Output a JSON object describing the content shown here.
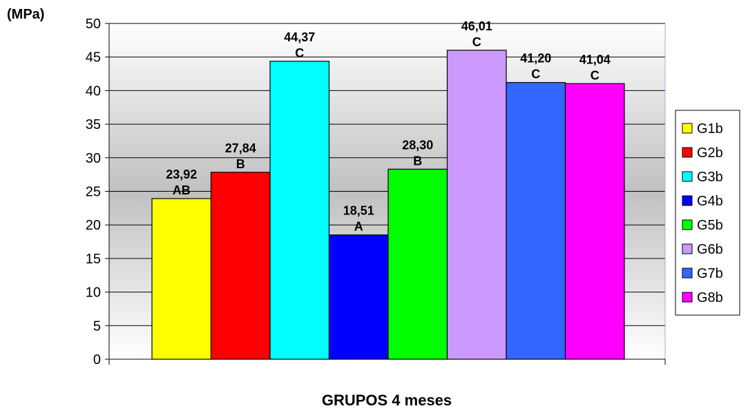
{
  "chart_data": {
    "type": "bar",
    "ylabel": "(MPa)",
    "xlabel": "GRUPOS 4 meses",
    "ylim": [
      0,
      50
    ],
    "yticks": [
      0,
      5,
      10,
      15,
      20,
      25,
      30,
      35,
      40,
      45,
      50
    ],
    "grid": true,
    "legend_position": "right",
    "series": [
      {
        "name": "G1b",
        "value": 23.92,
        "value_label": "23,92",
        "group_label": "AB",
        "color": "#ffff00"
      },
      {
        "name": "G2b",
        "value": 27.84,
        "value_label": "27,84",
        "group_label": "B",
        "color": "#ff0000"
      },
      {
        "name": "G3b",
        "value": 44.37,
        "value_label": "44,37",
        "group_label": "C",
        "color": "#00ffff"
      },
      {
        "name": "G4b",
        "value": 18.51,
        "value_label": "18,51",
        "group_label": "A",
        "color": "#0000ff"
      },
      {
        "name": "G5b",
        "value": 28.3,
        "value_label": "28,30",
        "group_label": "B",
        "color": "#00ff00"
      },
      {
        "name": "G6b",
        "value": 46.01,
        "value_label": "46,01",
        "group_label": "C",
        "color": "#cc99ff"
      },
      {
        "name": "G7b",
        "value": 41.2,
        "value_label": "41,20",
        "group_label": "C",
        "color": "#3366ff"
      },
      {
        "name": "G8b",
        "value": 41.04,
        "value_label": "41,04",
        "group_label": "C",
        "color": "#ff00ff"
      }
    ]
  }
}
